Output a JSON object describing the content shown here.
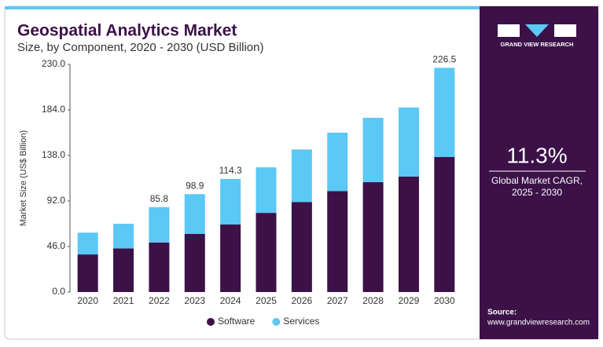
{
  "chart_data": {
    "type": "stacked-bar",
    "title": "Geospatial Analytics Market",
    "subtitle": "Size, by Component, 2020 - 2030 (USD Billion)",
    "y_label": "Market Size (US$ Billion)",
    "categories": [
      "2020",
      "2021",
      "2022",
      "2023",
      "2024",
      "2025",
      "2026",
      "2027",
      "2028",
      "2029",
      "2030"
    ],
    "series": [
      {
        "name": "Software",
        "color": "#3b1148",
        "values": [
          38,
          44,
          50,
          58.7,
          68.2,
          80,
          91,
          102,
          111,
          116.6,
          136.4
        ]
      },
      {
        "name": "Services",
        "color": "#5bc8f5",
        "values": [
          22,
          25,
          35.8,
          40.2,
          46.1,
          46,
          53,
          59,
          65,
          69.8,
          90.1
        ]
      }
    ],
    "totals": [
      null,
      null,
      85.8,
      98.9,
      114.3,
      null,
      null,
      null,
      null,
      null,
      226.5
    ],
    "ylim": [
      0,
      230
    ],
    "yticks": [
      {
        "value": 0,
        "label": "0.0"
      },
      {
        "value": 46,
        "label": "46.0"
      },
      {
        "value": 92,
        "label": "92.0"
      },
      {
        "value": 138,
        "label": "138.0"
      },
      {
        "value": 184,
        "label": "184.0"
      },
      {
        "value": 230,
        "label": "230.0"
      }
    ],
    "legend": "bottom"
  },
  "side_panel": {
    "brand": "GRAND VIEW RESEARCH",
    "cagr": "11.3%",
    "cagr_label_1": "Global Market CAGR,",
    "cagr_label_2": "2025 - 2030",
    "source_label": "Source:",
    "source_url": "www.grandviewresearch.com"
  }
}
